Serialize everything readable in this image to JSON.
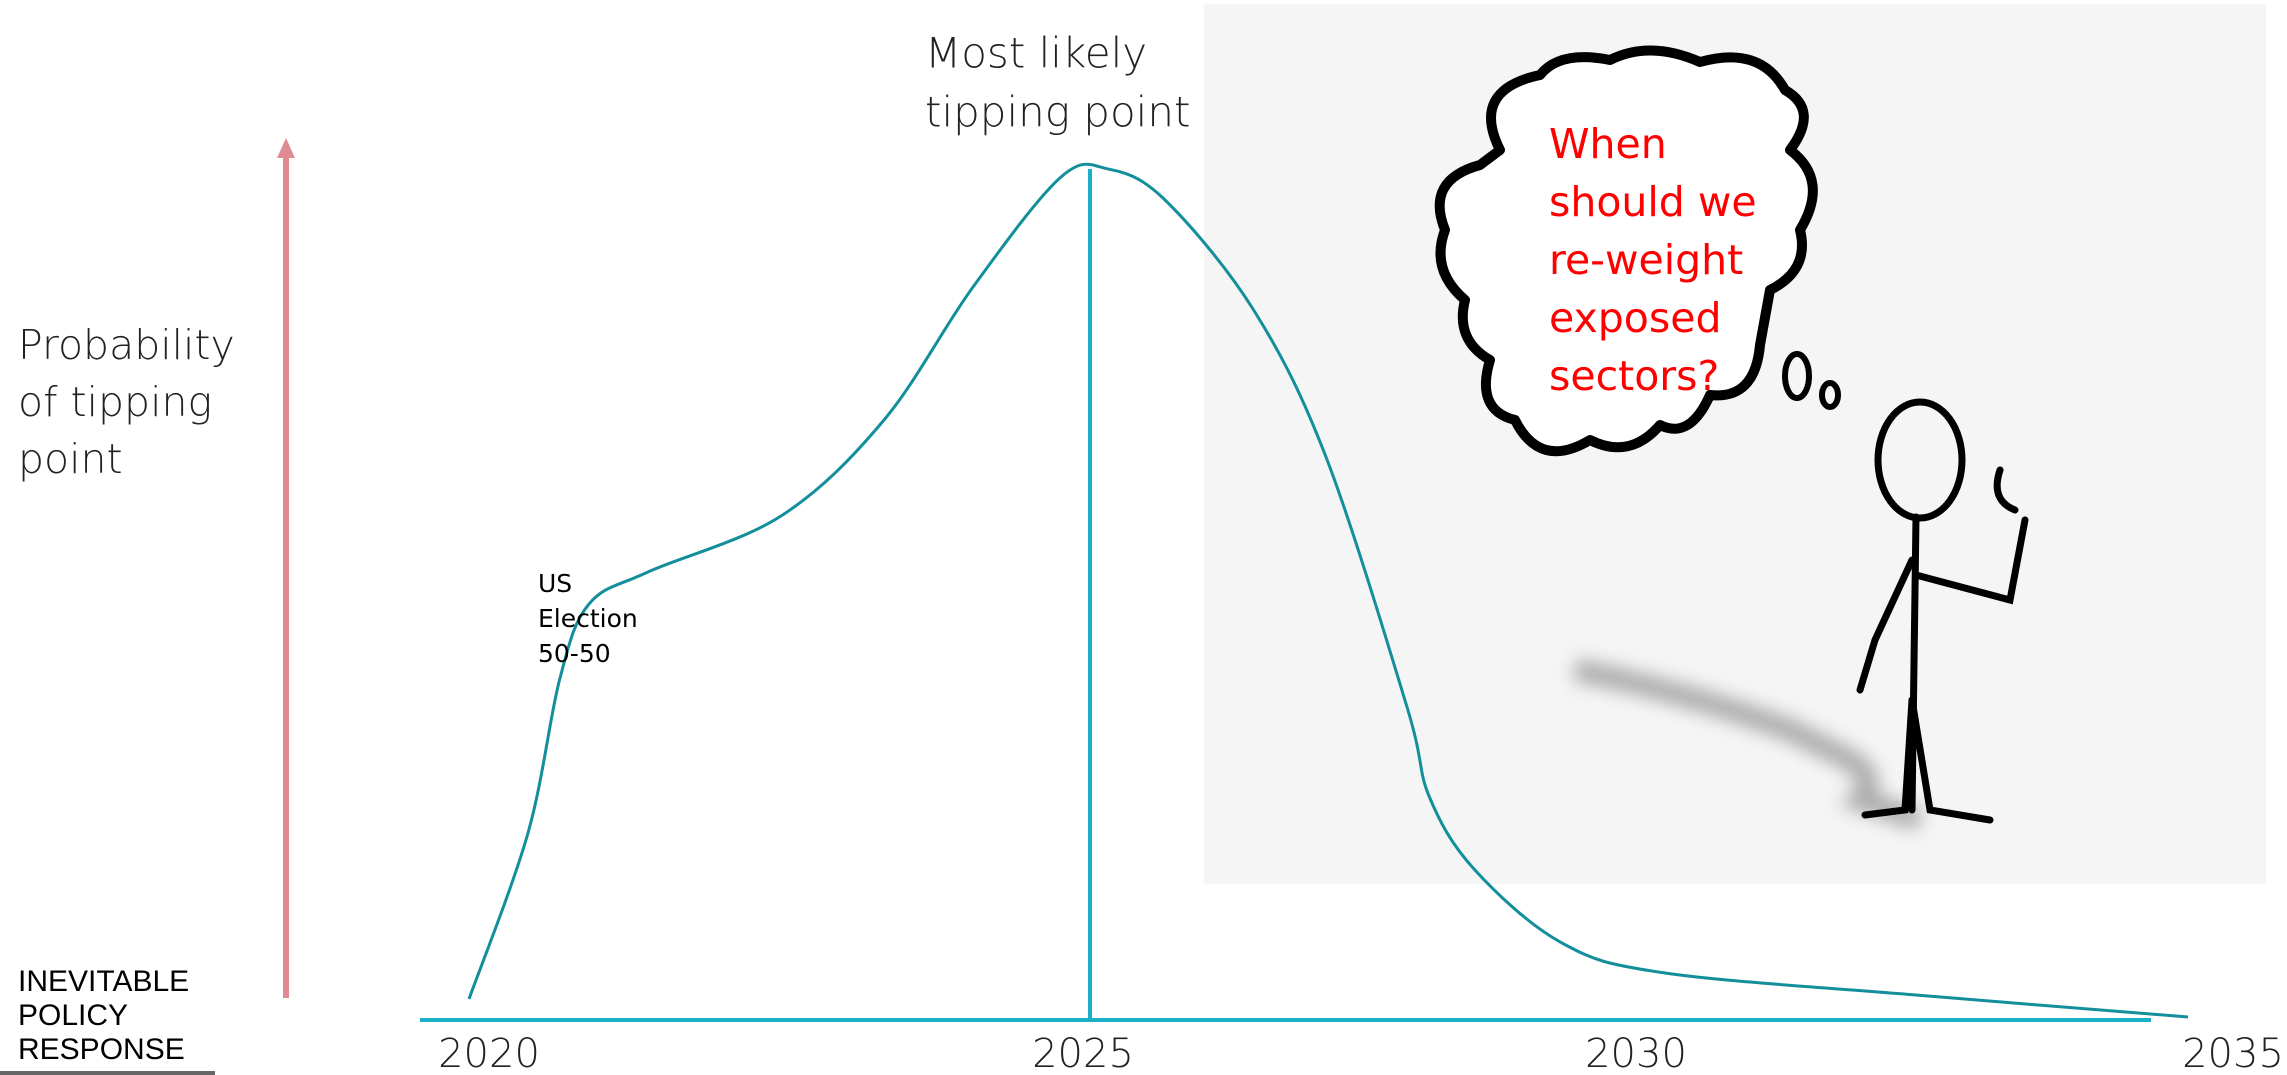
{
  "y_label": [
    "Probability",
    "of tipping",
    "point"
  ],
  "logo": [
    "INEVITABLE",
    "POLICY",
    "RESPONSE"
  ],
  "peak_label": [
    "Most likely",
    "tipping point"
  ],
  "event_label": [
    "US",
    "Election",
    "50-50"
  ],
  "x_labels": [
    "2020",
    "2025",
    "2030",
    "2035"
  ],
  "thought": [
    "When",
    "should we",
    "re-weight",
    "exposed",
    "sectors?"
  ]
}
